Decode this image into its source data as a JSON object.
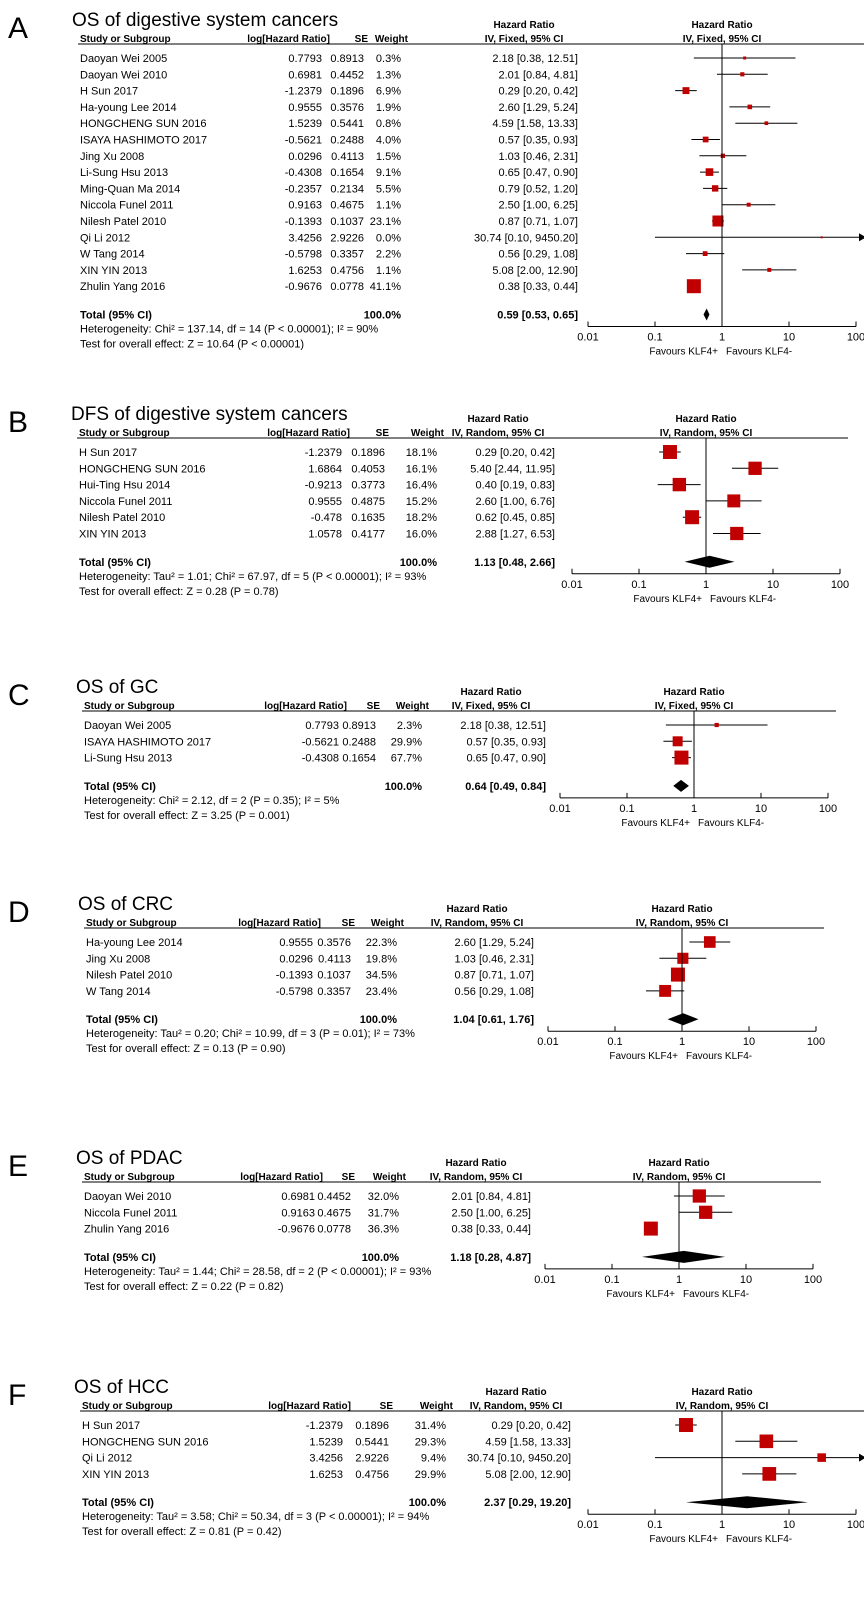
{
  "header": {
    "study": "Study or Subgroup",
    "loghr": "log[Hazard Ratio]",
    "se": "SE",
    "weight": "Weight",
    "hr": "Hazard Ratio",
    "axis_ticks": [
      "0.01",
      "0.1",
      "1",
      "10",
      "100"
    ],
    "favours_left": "Favours KLF4+",
    "favours_right": "Favours KLF4-"
  },
  "colors": {
    "marker": "#c00000",
    "line": "#000000"
  },
  "chart_data": [
    {
      "letter": "A",
      "title": "OS of digestive system cancers",
      "method": "IV, Fixed, 95% CI",
      "type": "forest",
      "xscale": "log",
      "xlim": [
        0.01,
        100
      ],
      "studies": [
        {
          "name": "Daoyan Wei 2005",
          "loghr": "0.7793",
          "se": "0.8913",
          "weight": "0.3%",
          "ci": "2.18 [0.38, 12.51]",
          "hr": 2.18,
          "lo": 0.38,
          "hi": 12.51,
          "w": 0.3
        },
        {
          "name": "Daoyan Wei 2010",
          "loghr": "0.6981",
          "se": "0.4452",
          "weight": "1.3%",
          "ci": "2.01 [0.84, 4.81]",
          "hr": 2.01,
          "lo": 0.84,
          "hi": 4.81,
          "w": 1.3
        },
        {
          "name": "H Sun 2017",
          "loghr": "-1.2379",
          "se": "0.1896",
          "weight": "6.9%",
          "ci": "0.29 [0.20, 0.42]",
          "hr": 0.29,
          "lo": 0.2,
          "hi": 0.42,
          "w": 6.9
        },
        {
          "name": "Ha-young Lee 2014",
          "loghr": "0.9555",
          "se": "0.3576",
          "weight": "1.9%",
          "ci": "2.60 [1.29, 5.24]",
          "hr": 2.6,
          "lo": 1.29,
          "hi": 5.24,
          "w": 1.9
        },
        {
          "name": "HONGCHENG SUN 2016",
          "loghr": "1.5239",
          "se": "0.5441",
          "weight": "0.8%",
          "ci": "4.59 [1.58, 13.33]",
          "hr": 4.59,
          "lo": 1.58,
          "hi": 13.33,
          "w": 0.8
        },
        {
          "name": "ISAYA HASHIMOTO 2017",
          "loghr": "-0.5621",
          "se": "0.2488",
          "weight": "4.0%",
          "ci": "0.57 [0.35, 0.93]",
          "hr": 0.57,
          "lo": 0.35,
          "hi": 0.93,
          "w": 4.0
        },
        {
          "name": "Jing Xu 2008",
          "loghr": "0.0296",
          "se": "0.4113",
          "weight": "1.5%",
          "ci": "1.03 [0.46, 2.31]",
          "hr": 1.03,
          "lo": 0.46,
          "hi": 2.31,
          "w": 1.5
        },
        {
          "name": "Li-Sung Hsu 2013",
          "loghr": "-0.4308",
          "se": "0.1654",
          "weight": "9.1%",
          "ci": "0.65 [0.47, 0.90]",
          "hr": 0.65,
          "lo": 0.47,
          "hi": 0.9,
          "w": 9.1
        },
        {
          "name": "Ming-Quan Ma 2014",
          "loghr": "-0.2357",
          "se": "0.2134",
          "weight": "5.5%",
          "ci": "0.79 [0.52, 1.20]",
          "hr": 0.79,
          "lo": 0.52,
          "hi": 1.2,
          "w": 5.5
        },
        {
          "name": "Niccola Funel 2011",
          "loghr": "0.9163",
          "se": "0.4675",
          "weight": "1.1%",
          "ci": "2.50 [1.00, 6.25]",
          "hr": 2.5,
          "lo": 1.0,
          "hi": 6.25,
          "w": 1.1
        },
        {
          "name": "Nilesh Patel 2010",
          "loghr": "-0.1393",
          "se": "0.1037",
          "weight": "23.1%",
          "ci": "0.87 [0.71, 1.07]",
          "hr": 0.87,
          "lo": 0.71,
          "hi": 1.07,
          "w": 23.1
        },
        {
          "name": "Qi Li 2012",
          "loghr": "3.4256",
          "se": "2.9226",
          "weight": "0.0%",
          "ci": "30.74 [0.10, 9450.20]",
          "hr": 30.74,
          "lo": 0.1,
          "hi": 9450.2,
          "w": 0.0
        },
        {
          "name": "W Tang 2014",
          "loghr": "-0.5798",
          "se": "0.3357",
          "weight": "2.2%",
          "ci": "0.56 [0.29, 1.08]",
          "hr": 0.56,
          "lo": 0.29,
          "hi": 1.08,
          "w": 2.2
        },
        {
          "name": "XIN YIN 2013",
          "loghr": "1.6253",
          "se": "0.4756",
          "weight": "1.1%",
          "ci": "5.08 [2.00, 12.90]",
          "hr": 5.08,
          "lo": 2.0,
          "hi": 12.9,
          "w": 1.1
        },
        {
          "name": "Zhulin Yang 2016",
          "loghr": "-0.9676",
          "se": "0.0778",
          "weight": "41.1%",
          "ci": "0.38 [0.33, 0.44]",
          "hr": 0.38,
          "lo": 0.33,
          "hi": 0.44,
          "w": 41.1
        }
      ],
      "total": {
        "label": "Total (95% CI)",
        "weight": "100.0%",
        "ci": "0.59 [0.53, 0.65]",
        "hr": 0.59,
        "lo": 0.53,
        "hi": 0.65
      },
      "heterogeneity": "Heterogeneity: Chi² = 137.14, df = 14 (P < 0.00001); I² = 90%",
      "overall": "Test for overall effect: Z = 10.64 (P < 0.00001)"
    },
    {
      "letter": "B",
      "title": "DFS of digestive system cancers",
      "method": "IV, Random, 95% CI",
      "type": "forest",
      "xscale": "log",
      "xlim": [
        0.01,
        100
      ],
      "studies": [
        {
          "name": "H Sun 2017",
          "loghr": "-1.2379",
          "se": "0.1896",
          "weight": "18.1%",
          "ci": "0.29 [0.20, 0.42]",
          "hr": 0.29,
          "lo": 0.2,
          "hi": 0.42,
          "w": 18.1
        },
        {
          "name": "HONGCHENG SUN 2016",
          "loghr": "1.6864",
          "se": "0.4053",
          "weight": "16.1%",
          "ci": "5.40 [2.44, 11.95]",
          "hr": 5.4,
          "lo": 2.44,
          "hi": 11.95,
          "w": 16.1
        },
        {
          "name": "Hui-Ting Hsu 2014",
          "loghr": "-0.9213",
          "se": "0.3773",
          "weight": "16.4%",
          "ci": "0.40 [0.19, 0.83]",
          "hr": 0.4,
          "lo": 0.19,
          "hi": 0.83,
          "w": 16.4
        },
        {
          "name": "Niccola Funel 2011",
          "loghr": "0.9555",
          "se": "0.4875",
          "weight": "15.2%",
          "ci": "2.60 [1.00, 6.76]",
          "hr": 2.6,
          "lo": 1.0,
          "hi": 6.76,
          "w": 15.2
        },
        {
          "name": "Nilesh Patel 2010",
          "loghr": "-0.478",
          "se": "0.1635",
          "weight": "18.2%",
          "ci": "0.62 [0.45, 0.85]",
          "hr": 0.62,
          "lo": 0.45,
          "hi": 0.85,
          "w": 18.2
        },
        {
          "name": "XIN YIN 2013",
          "loghr": "1.0578",
          "se": "0.4177",
          "weight": "16.0%",
          "ci": "2.88 [1.27, 6.53]",
          "hr": 2.88,
          "lo": 1.27,
          "hi": 6.53,
          "w": 16.0
        }
      ],
      "total": {
        "label": "Total (95% CI)",
        "weight": "100.0%",
        "ci": "1.13 [0.48, 2.66]",
        "hr": 1.13,
        "lo": 0.48,
        "hi": 2.66
      },
      "heterogeneity": "Heterogeneity: Tau² = 1.01; Chi² = 67.97, df = 5 (P < 0.00001); I² = 93%",
      "overall": "Test for overall effect: Z = 0.28 (P = 0.78)"
    },
    {
      "letter": "C",
      "title": "OS of GC",
      "method": "IV, Fixed, 95% CI",
      "type": "forest",
      "xscale": "log",
      "xlim": [
        0.01,
        100
      ],
      "studies": [
        {
          "name": "Daoyan Wei 2005",
          "loghr": "0.7793",
          "se": "0.8913",
          "weight": "2.3%",
          "ci": "2.18 [0.38, 12.51]",
          "hr": 2.18,
          "lo": 0.38,
          "hi": 12.51,
          "w": 2.3
        },
        {
          "name": "ISAYA HASHIMOTO 2017",
          "loghr": "-0.5621",
          "se": "0.2488",
          "weight": "29.9%",
          "ci": "0.57 [0.35, 0.93]",
          "hr": 0.57,
          "lo": 0.35,
          "hi": 0.93,
          "w": 29.9
        },
        {
          "name": "Li-Sung Hsu 2013",
          "loghr": "-0.4308",
          "se": "0.1654",
          "weight": "67.7%",
          "ci": "0.65 [0.47, 0.90]",
          "hr": 0.65,
          "lo": 0.47,
          "hi": 0.9,
          "w": 67.7
        }
      ],
      "total": {
        "label": "Total (95% CI)",
        "weight": "100.0%",
        "ci": "0.64 [0.49, 0.84]",
        "hr": 0.64,
        "lo": 0.49,
        "hi": 0.84
      },
      "heterogeneity": "Heterogeneity: Chi² = 2.12, df = 2 (P = 0.35); I² = 5%",
      "overall": "Test for overall effect: Z = 3.25 (P = 0.001)"
    },
    {
      "letter": "D",
      "title": "OS of CRC",
      "method": "IV, Random, 95% CI",
      "type": "forest",
      "xscale": "log",
      "xlim": [
        0.01,
        100
      ],
      "studies": [
        {
          "name": "Ha-young Lee 2014",
          "loghr": "0.9555",
          "se": "0.3576",
          "weight": "22.3%",
          "ci": "2.60 [1.29, 5.24]",
          "hr": 2.6,
          "lo": 1.29,
          "hi": 5.24,
          "w": 22.3
        },
        {
          "name": "Jing Xu 2008",
          "loghr": "0.0296",
          "se": "0.4113",
          "weight": "19.8%",
          "ci": "1.03 [0.46, 2.31]",
          "hr": 1.03,
          "lo": 0.46,
          "hi": 2.31,
          "w": 19.8
        },
        {
          "name": "Nilesh Patel 2010",
          "loghr": "-0.1393",
          "se": "0.1037",
          "weight": "34.5%",
          "ci": "0.87 [0.71, 1.07]",
          "hr": 0.87,
          "lo": 0.71,
          "hi": 1.07,
          "w": 34.5
        },
        {
          "name": "W Tang 2014",
          "loghr": "-0.5798",
          "se": "0.3357",
          "weight": "23.4%",
          "ci": "0.56 [0.29, 1.08]",
          "hr": 0.56,
          "lo": 0.29,
          "hi": 1.08,
          "w": 23.4
        }
      ],
      "total": {
        "label": "Total (95% CI)",
        "weight": "100.0%",
        "ci": "1.04 [0.61, 1.76]",
        "hr": 1.04,
        "lo": 0.61,
        "hi": 1.76
      },
      "heterogeneity": "Heterogeneity: Tau² = 0.20; Chi² = 10.99, df = 3 (P = 0.01); I² = 73%",
      "overall": "Test for overall effect: Z = 0.13 (P = 0.90)"
    },
    {
      "letter": "E",
      "title": "OS of PDAC",
      "method": "IV, Random, 95% CI",
      "type": "forest",
      "xscale": "log",
      "xlim": [
        0.01,
        100
      ],
      "studies": [
        {
          "name": "Daoyan Wei 2010",
          "loghr": "0.6981",
          "se": "0.4452",
          "weight": "32.0%",
          "ci": "2.01 [0.84, 4.81]",
          "hr": 2.01,
          "lo": 0.84,
          "hi": 4.81,
          "w": 32.0
        },
        {
          "name": "Niccola Funel 2011",
          "loghr": "0.9163",
          "se": "0.4675",
          "weight": "31.7%",
          "ci": "2.50 [1.00, 6.25]",
          "hr": 2.5,
          "lo": 1.0,
          "hi": 6.25,
          "w": 31.7
        },
        {
          "name": "Zhulin Yang 2016",
          "loghr": "-0.9676",
          "se": "0.0778",
          "weight": "36.3%",
          "ci": "0.38 [0.33, 0.44]",
          "hr": 0.38,
          "lo": 0.33,
          "hi": 0.44,
          "w": 36.3
        }
      ],
      "total": {
        "label": "Total (95% CI)",
        "weight": "100.0%",
        "ci": "1.18 [0.28, 4.87]",
        "hr": 1.18,
        "lo": 0.28,
        "hi": 4.87
      },
      "heterogeneity": "Heterogeneity: Tau² = 1.44; Chi² = 28.58, df = 2 (P < 0.00001); I² = 93%",
      "overall": "Test for overall effect: Z = 0.22 (P = 0.82)"
    },
    {
      "letter": "F",
      "title": "OS of HCC",
      "method": "IV, Random, 95% CI",
      "type": "forest",
      "xscale": "log",
      "xlim": [
        0.01,
        100
      ],
      "studies": [
        {
          "name": "H Sun 2017",
          "loghr": "-1.2379",
          "se": "0.1896",
          "weight": "31.4%",
          "ci": "0.29 [0.20, 0.42]",
          "hr": 0.29,
          "lo": 0.2,
          "hi": 0.42,
          "w": 31.4
        },
        {
          "name": "HONGCHENG SUN 2016",
          "loghr": "1.5239",
          "se": "0.5441",
          "weight": "29.3%",
          "ci": "4.59 [1.58, 13.33]",
          "hr": 4.59,
          "lo": 1.58,
          "hi": 13.33,
          "w": 29.3
        },
        {
          "name": "Qi Li 2012",
          "loghr": "3.4256",
          "se": "2.9226",
          "weight": "9.4%",
          "ci": "30.74 [0.10, 9450.20]",
          "hr": 30.74,
          "lo": 0.1,
          "hi": 9450.2,
          "w": 9.4
        },
        {
          "name": "XIN YIN 2013",
          "loghr": "1.6253",
          "se": "0.4756",
          "weight": "29.9%",
          "ci": "5.08 [2.00, 12.90]",
          "hr": 5.08,
          "lo": 2.0,
          "hi": 12.9,
          "w": 29.9
        }
      ],
      "total": {
        "label": "Total (95% CI)",
        "weight": "100.0%",
        "ci": "2.37 [0.29, 19.20]",
        "hr": 2.37,
        "lo": 0.29,
        "hi": 19.2
      },
      "heterogeneity": "Heterogeneity: Tau² = 3.58; Chi² = 50.34, df = 3 (P < 0.00001); I² = 94%",
      "overall": "Test for overall effect: Z = 0.81 (P = 0.42)"
    }
  ]
}
